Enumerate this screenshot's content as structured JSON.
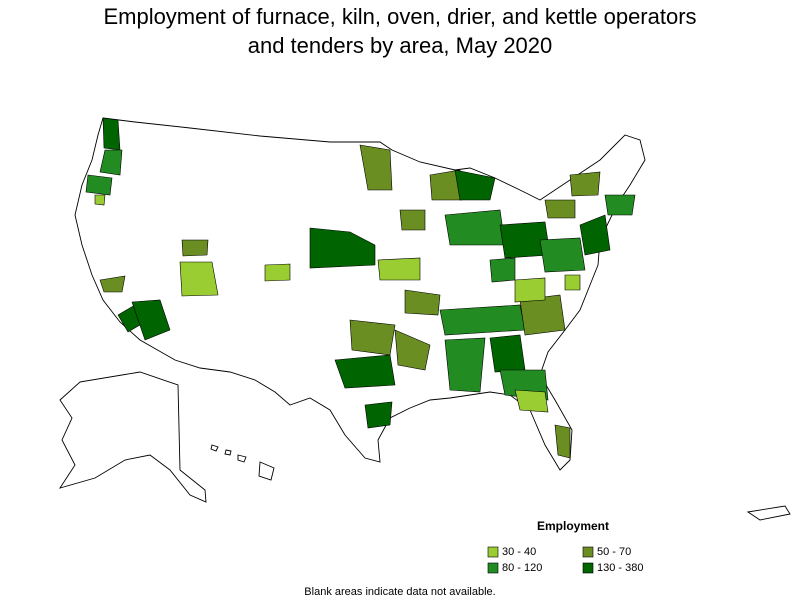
{
  "title": "Employment of furnace, kiln, oven, drier, and kettle operators and tenders by area, May 2020",
  "legend": {
    "title": "Employment",
    "items": [
      {
        "label": "30 - 40",
        "color": "#9acd32"
      },
      {
        "label": "50 - 70",
        "color": "#6b8e23"
      },
      {
        "label": "80 - 120",
        "color": "#228b22"
      },
      {
        "label": "130 - 380",
        "color": "#006400"
      }
    ]
  },
  "footnote": "Blank areas indicate data not available."
}
